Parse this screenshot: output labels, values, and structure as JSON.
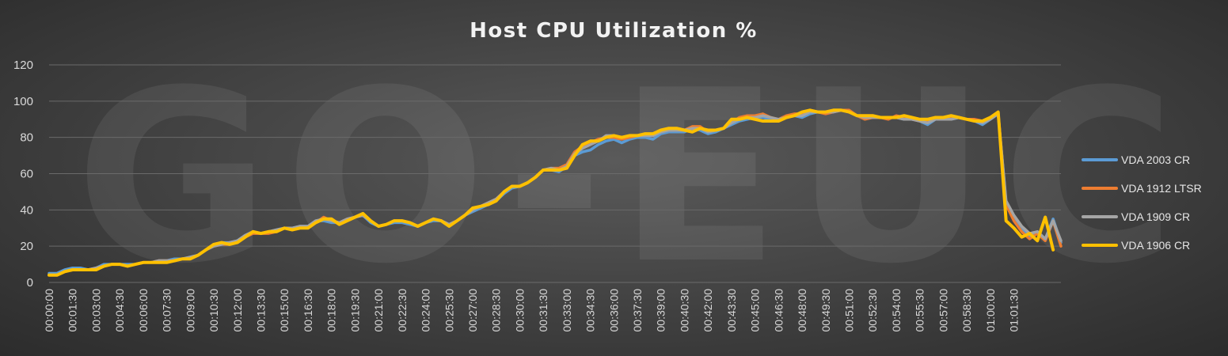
{
  "chart_data": {
    "type": "line",
    "title": "Host CPU Utilization %",
    "watermark": "GO-EUC",
    "xlabel": "",
    "ylabel": "",
    "ylim": [
      0,
      120
    ],
    "yticks": [
      0,
      20,
      40,
      60,
      80,
      100,
      120
    ],
    "grid": true,
    "legend_position": "right",
    "x_tick_labels": [
      "00:00:00",
      "00:01:30",
      "00:03:00",
      "00:04:30",
      "00:06:00",
      "00:07:30",
      "00:09:00",
      "00:10:30",
      "00:12:00",
      "00:13:30",
      "00:15:00",
      "00:16:30",
      "00:18:00",
      "00:19:30",
      "00:21:00",
      "00:22:30",
      "00:24:00",
      "00:25:30",
      "00:27:00",
      "00:28:30",
      "00:30:00",
      "00:31:30",
      "00:33:00",
      "00:34:30",
      "00:36:00",
      "00:37:30",
      "00:39:00",
      "00:40:30",
      "00:42:00",
      "00:43:30",
      "00:45:00",
      "00:46:30",
      "00:48:00",
      "00:49:30",
      "00:51:00",
      "00:52:30",
      "00:54:00",
      "00:55:30",
      "00:57:00",
      "00:58:30",
      "01:00:00",
      "01:01:30"
    ],
    "x_interval_seconds": 30,
    "series": [
      {
        "name": "VDA 2003 CR",
        "color": "#5b9bd5",
        "values": [
          5,
          5,
          7,
          8,
          8,
          7,
          8,
          10,
          10,
          10,
          10,
          10,
          11,
          11,
          12,
          12,
          13,
          13,
          14,
          15,
          18,
          21,
          22,
          22,
          23,
          26,
          28,
          27,
          28,
          29,
          30,
          30,
          31,
          31,
          34,
          34,
          33,
          33,
          35,
          36,
          37,
          33,
          31,
          32,
          33,
          33,
          32,
          31,
          33,
          34,
          34,
          32,
          34,
          37,
          39,
          41,
          43,
          45,
          49,
          52,
          53,
          55,
          58,
          62,
          62,
          61,
          64,
          70,
          72,
          73,
          76,
          78,
          79,
          77,
          79,
          80,
          80,
          79,
          82,
          83,
          83,
          83,
          85,
          84,
          82,
          83,
          85,
          87,
          89,
          90,
          91,
          91,
          90,
          90,
          91,
          92,
          91,
          93,
          94,
          94,
          94,
          95,
          94,
          92,
          91,
          91,
          91,
          91,
          91,
          90,
          90,
          89,
          87,
          90,
          90,
          90,
          91,
          90,
          89,
          87,
          90,
          93,
          44,
          36,
          30,
          25,
          28,
          24,
          35,
          22
        ]
      },
      {
        "name": "VDA 1912 LTSR",
        "color": "#ed7d31",
        "values": [
          4,
          4,
          6,
          7,
          7,
          7,
          8,
          9,
          10,
          10,
          9,
          10,
          11,
          11,
          12,
          12,
          12,
          13,
          13,
          15,
          18,
          20,
          21,
          21,
          22,
          25,
          27,
          27,
          27,
          28,
          30,
          29,
          30,
          31,
          33,
          36,
          34,
          33,
          35,
          36,
          37,
          34,
          31,
          32,
          34,
          34,
          33,
          31,
          33,
          35,
          34,
          32,
          34,
          37,
          40,
          42,
          44,
          46,
          50,
          53,
          53,
          55,
          58,
          62,
          63,
          63,
          65,
          72,
          75,
          77,
          79,
          80,
          80,
          79,
          80,
          81,
          81,
          81,
          83,
          84,
          84,
          84,
          86,
          86,
          83,
          84,
          85,
          88,
          91,
          92,
          92,
          93,
          91,
          90,
          92,
          93,
          93,
          95,
          94,
          93,
          94,
          95,
          95,
          92,
          90,
          91,
          91,
          90,
          92,
          91,
          90,
          89,
          89,
          91,
          91,
          91,
          91,
          90,
          90,
          89,
          91,
          94,
          43,
          34,
          28,
          24,
          27,
          23,
          34,
          20
        ]
      },
      {
        "name": "VDA 1909 CR",
        "color": "#a5a5a5",
        "values": [
          4,
          4,
          6,
          7,
          7,
          7,
          8,
          9,
          10,
          10,
          9,
          10,
          11,
          11,
          12,
          12,
          12,
          13,
          14,
          15,
          18,
          20,
          21,
          22,
          23,
          26,
          28,
          27,
          28,
          29,
          30,
          30,
          31,
          31,
          34,
          35,
          34,
          33,
          35,
          36,
          37,
          34,
          31,
          32,
          34,
          34,
          33,
          31,
          33,
          35,
          34,
          32,
          34,
          37,
          40,
          42,
          44,
          46,
          50,
          53,
          53,
          55,
          58,
          62,
          63,
          62,
          64,
          71,
          74,
          76,
          78,
          81,
          81,
          80,
          81,
          81,
          81,
          81,
          83,
          84,
          84,
          84,
          85,
          85,
          83,
          84,
          85,
          88,
          90,
          91,
          91,
          92,
          91,
          90,
          91,
          92,
          92,
          94,
          94,
          94,
          94,
          95,
          94,
          92,
          91,
          91,
          91,
          91,
          91,
          90,
          90,
          89,
          88,
          90,
          90,
          90,
          91,
          90,
          89,
          88,
          90,
          93,
          45,
          37,
          31,
          27,
          28,
          24,
          34,
          23
        ]
      },
      {
        "name": "VDA 1906 CR",
        "color": "#ffc000",
        "values": [
          4,
          4,
          6,
          7,
          7,
          7,
          7,
          9,
          10,
          10,
          9,
          10,
          11,
          11,
          11,
          11,
          12,
          13,
          13,
          15,
          18,
          21,
          22,
          21,
          22,
          25,
          28,
          27,
          28,
          28,
          30,
          29,
          30,
          30,
          33,
          35,
          35,
          32,
          34,
          36,
          38,
          34,
          31,
          32,
          34,
          34,
          33,
          31,
          33,
          35,
          34,
          31,
          34,
          37,
          41,
          42,
          43,
          45,
          50,
          53,
          53,
          55,
          58,
          62,
          62,
          62,
          63,
          70,
          76,
          78,
          78,
          80,
          81,
          80,
          81,
          81,
          82,
          82,
          84,
          85,
          85,
          84,
          83,
          85,
          84,
          84,
          85,
          90,
          90,
          91,
          90,
          89,
          89,
          89,
          91,
          92,
          94,
          95,
          94,
          94,
          95,
          95,
          94,
          92,
          92,
          92,
          91,
          91,
          91,
          92,
          91,
          90,
          90,
          91,
          91,
          92,
          91,
          90,
          89,
          89,
          91,
          94,
          34,
          30,
          25,
          27,
          23,
          36,
          18,
          null
        ]
      }
    ]
  }
}
